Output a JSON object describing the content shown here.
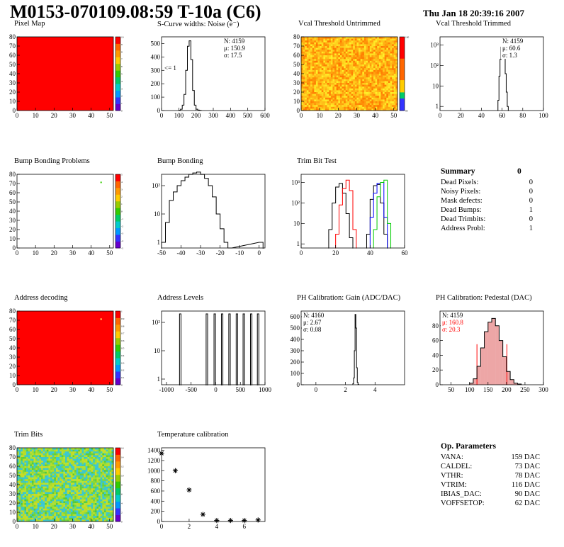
{
  "header": {
    "title": "M0153-070109.08:59 T-10a (C6)",
    "date": "Thu Jan 18 20:39:16 2007"
  },
  "colors": {
    "red": "#ff0000",
    "black": "#000000",
    "blue": "#0000ff",
    "green": "#00cc00",
    "pedestal_fill": "#cc0000"
  },
  "chart_data": [
    {
      "id": "pixel-map",
      "type": "heatmap",
      "title": "Pixel Map",
      "xticks": [
        0,
        10,
        20,
        30,
        40,
        50
      ],
      "yticks": [
        0,
        10,
        20,
        30,
        40,
        50,
        60,
        70,
        80
      ],
      "xlim": [
        0,
        52
      ],
      "ylim": [
        0,
        80
      ],
      "zticks": [
        0,
        1,
        2,
        3,
        4,
        5,
        6,
        7,
        8,
        9,
        10
      ],
      "fill": "uniform",
      "fill_color": "#ff0000"
    },
    {
      "id": "scurve-widths",
      "type": "histogram",
      "title": "S-Curve widths: Noise (e⁻)",
      "xticks": [
        0,
        100,
        200,
        300,
        400,
        500,
        600
      ],
      "yticks": [
        0,
        100,
        200,
        300,
        400,
        500
      ],
      "xlim": [
        0,
        600
      ],
      "ylim": [
        0,
        550
      ],
      "stats": {
        "N": "N: 4159",
        "mean": "μ: 150.9",
        "sigma": "σ: 17.5"
      },
      "annotation": "<= 1",
      "x": [
        100,
        110,
        120,
        130,
        140,
        150,
        160,
        170,
        180,
        190,
        200,
        210,
        220
      ],
      "values": [
        2,
        10,
        40,
        120,
        300,
        480,
        520,
        380,
        150,
        40,
        10,
        3,
        1
      ]
    },
    {
      "id": "vcal-untrimmed",
      "type": "heatmap",
      "title": "Vcal Threshold Untrimmed",
      "xticks": [
        0,
        10,
        20,
        30,
        40,
        50
      ],
      "yticks": [
        0,
        10,
        20,
        30,
        40,
        50,
        60,
        70,
        80
      ],
      "xlim": [
        0,
        52
      ],
      "ylim": [
        0,
        80
      ],
      "zticks": [
        80,
        100
      ],
      "fill": "noise-warm"
    },
    {
      "id": "vcal-trimmed",
      "type": "histogram",
      "title": "Vcal Threshold Trimmed",
      "xticks": [
        0,
        20,
        40,
        60,
        80,
        100
      ],
      "xlim": [
        0,
        100
      ],
      "log": true,
      "ylabels": [
        "1",
        "10",
        "10²",
        "10³"
      ],
      "stats": {
        "N": "N: 4159",
        "mean": "μ: 60.6",
        "sigma": "σ:  1.3"
      },
      "x": [
        56,
        57,
        58,
        59,
        60,
        61,
        62,
        63,
        64,
        65
      ],
      "values": [
        2,
        30,
        200,
        800,
        1600,
        1200,
        300,
        40,
        5,
        1
      ]
    },
    {
      "id": "bump-bonding-problems",
      "type": "heatmap",
      "title": "Bump Bonding Problems",
      "xticks": [
        0,
        10,
        20,
        30,
        40,
        50
      ],
      "yticks": [
        0,
        10,
        20,
        30,
        40,
        50,
        60,
        70,
        80
      ],
      "xlim": [
        0,
        52
      ],
      "ylim": [
        0,
        80
      ],
      "zticks": [
        -5,
        -4,
        -3,
        -2,
        -1,
        0,
        1,
        2,
        3,
        4,
        5
      ],
      "fill": "empty",
      "hot": [
        [
          45,
          72
        ]
      ]
    },
    {
      "id": "bump-bonding",
      "type": "histogram",
      "title": "Bump Bonding",
      "xticks": [
        -50,
        -40,
        -30,
        -20,
        -10,
        0
      ],
      "xlim": [
        -50,
        3
      ],
      "log": true,
      "ylabels": [
        "1",
        "10",
        "10²"
      ],
      "x": [
        -50,
        -48,
        -46,
        -44,
        -42,
        -40,
        -38,
        -36,
        -34,
        -32,
        -30,
        -28,
        -26,
        -24,
        -22,
        -20,
        -18,
        -16,
        0
      ],
      "values": [
        1,
        5,
        30,
        60,
        100,
        150,
        200,
        250,
        280,
        300,
        250,
        180,
        100,
        40,
        10,
        3,
        1,
        0,
        1
      ]
    },
    {
      "id": "trim-bit-test",
      "type": "histogram",
      "title": "Trim Bit Test",
      "xticks": [
        0,
        20,
        40,
        60
      ],
      "xlim": [
        0,
        60
      ],
      "log": true,
      "ylabels": [
        "1",
        "10",
        "10²",
        "10³"
      ],
      "series": [
        {
          "color": "#000000",
          "x": [
            16,
            18,
            20,
            22,
            24,
            26,
            28
          ],
          "values": [
            5,
            100,
            600,
            900,
            300,
            30,
            2
          ],
          "x2": [
            38,
            40,
            42,
            44,
            46,
            48
          ],
          "values2": [
            3,
            150,
            700,
            800,
            100,
            3
          ]
        },
        {
          "color": "#ff0000",
          "x": [
            20,
            22,
            24,
            26,
            28,
            30
          ],
          "values": [
            3,
            80,
            500,
            1300,
            400,
            5
          ]
        },
        {
          "color": "#0000ff",
          "x": [
            40,
            42,
            44,
            46,
            48
          ],
          "values": [
            20,
            300,
            900,
            1000,
            20
          ]
        },
        {
          "color": "#00cc00",
          "x": [
            42,
            44,
            46,
            48,
            50
          ],
          "values": [
            5,
            200,
            1000,
            1300,
            10
          ]
        }
      ]
    },
    {
      "id": "address-decoding",
      "type": "heatmap",
      "title": "Address decoding",
      "xticks": [
        0,
        10,
        20,
        30,
        40,
        50
      ],
      "yticks": [
        0,
        10,
        20,
        30,
        40,
        50,
        60,
        70,
        80
      ],
      "xlim": [
        0,
        52
      ],
      "ylim": [
        0,
        80
      ],
      "zticks": [
        0,
        0.1,
        0.2,
        0.3,
        0.4,
        0.5,
        0.6,
        0.7,
        0.8,
        0.9,
        1
      ],
      "fill": "uniform",
      "fill_color": "#ff0000",
      "hot": [
        [
          45,
          72
        ]
      ]
    },
    {
      "id": "address-levels",
      "type": "histogram",
      "title": "Address Levels",
      "xticks": [
        -1000,
        -500,
        0,
        500,
        1000
      ],
      "xlim": [
        -1100,
        1000
      ],
      "log": true,
      "ylabels": [
        "1",
        "10",
        "10²"
      ],
      "peaks": [
        -720,
        -180,
        -20,
        130,
        280,
        430,
        570,
        720,
        860
      ],
      "peak_values": [
        200,
        200,
        200,
        200,
        200,
        200,
        200,
        200,
        200
      ]
    },
    {
      "id": "ph-gain",
      "type": "histogram",
      "title": "PH Calibration: Gain (ADC/DAC)",
      "xticks": [
        0,
        2,
        4
      ],
      "xlim": [
        -1,
        6
      ],
      "yticks": [
        0,
        100,
        200,
        300,
        400,
        500,
        600
      ],
      "ylim": [
        0,
        650
      ],
      "stats": {
        "N": "N: 4160",
        "mean": "μ: 2.67",
        "sigma": "σ: 0.08"
      },
      "x": [
        2.5,
        2.55,
        2.6,
        2.65,
        2.7,
        2.75,
        2.8,
        2.85
      ],
      "values": [
        10,
        60,
        300,
        620,
        500,
        150,
        20,
        2
      ]
    },
    {
      "id": "ph-pedestal",
      "type": "histogram",
      "title": "PH Calibration: Pedestal (DAC)",
      "xticks": [
        50,
        100,
        150,
        200,
        250,
        300
      ],
      "xlim": [
        20,
        300
      ],
      "yticks": [
        0,
        20,
        40,
        60,
        80
      ],
      "ylim": [
        0,
        100
      ],
      "stats": {
        "N": "N: 4159",
        "mean": "μ: 160.8",
        "sigma": "σ: 20.3"
      },
      "cut_lines": [
        120,
        201
      ],
      "x": [
        100,
        110,
        120,
        130,
        140,
        150,
        160,
        170,
        180,
        190,
        200,
        210,
        220,
        230
      ],
      "values": [
        2,
        8,
        25,
        50,
        72,
        85,
        90,
        80,
        60,
        38,
        18,
        7,
        2,
        1
      ]
    },
    {
      "id": "trim-bits",
      "type": "heatmap",
      "title": "Trim Bits",
      "xticks": [
        0,
        10,
        20,
        30,
        40,
        50
      ],
      "yticks": [
        0,
        10,
        20,
        30,
        40,
        50,
        60,
        70,
        80
      ],
      "xlim": [
        0,
        52
      ],
      "ylim": [
        0,
        80
      ],
      "zticks": [
        0,
        2,
        4,
        6,
        8,
        10,
        12,
        14,
        16
      ],
      "fill": "noise-cool"
    },
    {
      "id": "temperature-calibration",
      "type": "scatter",
      "title": "Temperature calibration",
      "xticks": [
        0,
        2,
        4,
        6
      ],
      "xlim": [
        0,
        7.5
      ],
      "yticks": [
        0,
        200,
        400,
        600,
        800,
        1000,
        1200,
        1400
      ],
      "ylim": [
        0,
        1450
      ],
      "x": [
        0,
        1,
        2,
        3,
        4,
        5,
        6,
        7
      ],
      "values": [
        1340,
        1000,
        620,
        140,
        20,
        20,
        20,
        30
      ]
    }
  ],
  "summary": {
    "title": "Summary",
    "total": "0",
    "rows": [
      {
        "label": "Dead Pixels:",
        "value": "0"
      },
      {
        "label": "Noisy Pixels:",
        "value": "0"
      },
      {
        "label": "Mask defects:",
        "value": "0"
      },
      {
        "label": "Dead Bumps:",
        "value": "1"
      },
      {
        "label": "Dead Trimbits:",
        "value": "0"
      },
      {
        "label": "Address Probl:",
        "value": "1"
      }
    ]
  },
  "op_params": {
    "title": "Op. Parameters",
    "rows": [
      {
        "label": "VANA:",
        "value": "159 DAC"
      },
      {
        "label": "CALDEL:",
        "value": "73 DAC"
      },
      {
        "label": "VTHR:",
        "value": "78 DAC"
      },
      {
        "label": "VTRIM:",
        "value": "116 DAC"
      },
      {
        "label": "IBIAS_DAC:",
        "value": "90 DAC"
      },
      {
        "label": "VOFFSETOP:",
        "value": "62 DAC"
      }
    ]
  }
}
